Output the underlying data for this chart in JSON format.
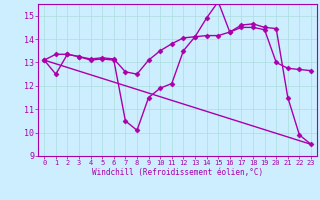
{
  "xlabel": "Windchill (Refroidissement éolien,°C)",
  "xlim": [
    -0.5,
    23.5
  ],
  "ylim": [
    9,
    15.5
  ],
  "yticks": [
    9,
    10,
    11,
    12,
    13,
    14,
    15
  ],
  "xticks": [
    0,
    1,
    2,
    3,
    4,
    5,
    6,
    7,
    8,
    9,
    10,
    11,
    12,
    13,
    14,
    15,
    16,
    17,
    18,
    19,
    20,
    21,
    22,
    23
  ],
  "bg_color": "#cceeff",
  "line_color": "#aa00aa",
  "grid_color": "#aadddd",
  "line1_x": [
    0,
    1,
    2,
    3,
    4,
    5,
    6,
    7,
    8,
    9,
    10,
    11,
    12,
    13,
    14,
    15,
    16,
    17,
    18,
    19,
    20,
    21,
    22,
    23
  ],
  "line1_y": [
    13.1,
    12.5,
    13.35,
    13.25,
    13.1,
    13.15,
    13.1,
    10.5,
    10.1,
    11.5,
    11.9,
    12.1,
    13.5,
    14.1,
    14.9,
    15.6,
    14.3,
    14.6,
    14.65,
    14.5,
    14.45,
    11.5,
    9.9,
    9.5
  ],
  "line2_x": [
    0,
    1,
    2,
    3,
    4,
    5,
    6,
    7,
    8,
    9,
    10,
    11,
    12,
    13,
    14,
    15,
    16,
    17,
    18,
    19,
    20,
    21,
    22,
    23
  ],
  "line2_y": [
    13.1,
    13.35,
    13.35,
    13.25,
    13.15,
    13.2,
    13.15,
    12.6,
    12.5,
    13.1,
    13.5,
    13.8,
    14.05,
    14.1,
    14.15,
    14.15,
    14.3,
    14.5,
    14.5,
    14.4,
    13.0,
    12.75,
    12.7,
    12.65
  ],
  "line3_x": [
    0,
    23
  ],
  "line3_y": [
    13.1,
    9.5
  ],
  "marker": "D",
  "markersize": 2.5,
  "linewidth": 1.0
}
